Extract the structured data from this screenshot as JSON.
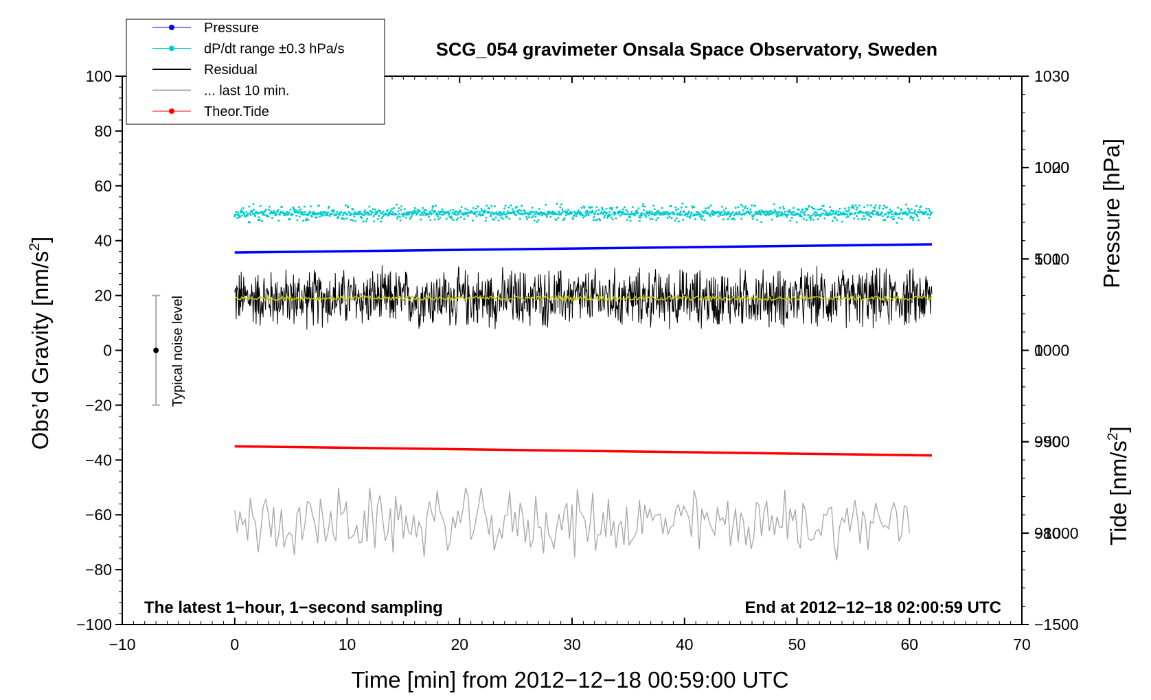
{
  "chart_data": {
    "type": "line",
    "title": "SCG_054 gravimeter Onsala Space Observatory, Sweden",
    "xlabel": "Time [min] from 2012−12−18 00:59:00 UTC",
    "ylabel_left": "Obs’d Gravity [nm/s²]",
    "ylabel_left_main": "Obs’d Gravity [nm/s",
    "ylabel_left_sup": "2",
    "ylabel_left_close": "]",
    "ylabel_right_pressure": "Pressure [hPa]",
    "ylabel_right_tide": "Tide [nm/s²]",
    "ylabel_right_tide_main": "Tide [nm/s",
    "ylabel_right_tide_sup": "2",
    "ylabel_right_tide_close": "]",
    "xlim": [
      -10,
      70
    ],
    "ylim_left": [
      -100,
      100
    ],
    "ylim_pressure": [
      970,
      1030
    ],
    "ylim_tide": [
      -1500,
      1500
    ],
    "grid": false,
    "legend_position": "top-left",
    "x_ticks": [
      "−10",
      "0",
      "10",
      "20",
      "30",
      "40",
      "50",
      "60",
      "70"
    ],
    "x_tick_values": [
      -10,
      0,
      10,
      20,
      30,
      40,
      50,
      60,
      70
    ],
    "y_ticks_left": [
      "100",
      "80",
      "60",
      "40",
      "20",
      "0",
      "−20",
      "−40",
      "−60",
      "−80",
      "−100"
    ],
    "y_tick_values_left": [
      100,
      80,
      60,
      40,
      20,
      0,
      -20,
      -40,
      -60,
      -80,
      -100
    ],
    "pressure_ticks": [
      "1030",
      "1020",
      "1010",
      "1000",
      "990",
      "980"
    ],
    "pressure_tick_values": [
      1030,
      1020,
      1010,
      1000,
      990,
      980
    ],
    "tide_ticks": [
      "1000",
      "500",
      "0",
      "−500",
      "−1000",
      "−1500"
    ],
    "tide_tick_values": [
      1000,
      500,
      0,
      -500,
      -1000,
      -1500
    ],
    "note_left": "The latest 1−hour, 1−second sampling",
    "note_right": "End at 2012−12−18 02:00:59 UTC",
    "noise_label": "Typical noise level",
    "noise_bar": {
      "x": -7,
      "center": 0,
      "low": -20,
      "high": 20
    },
    "legend": [
      {
        "label": "Pressure",
        "color": "#0000ff",
        "marker": true
      },
      {
        "label": "dP/dt range ±0.3 hPa/s",
        "color": "#00cccc",
        "marker": true
      },
      {
        "label": "Residual",
        "color": "#000000",
        "marker": false
      },
      {
        "label": "... last 10 min.",
        "color": "#a9a9a9",
        "marker": false
      },
      {
        "label": "Theor.Tide",
        "color": "#ff0000",
        "marker": true
      }
    ],
    "series": [
      {
        "name": "Pressure",
        "unit": "hPa",
        "axis": "right-pressure",
        "color": "#0000ff",
        "x": [
          0,
          62
        ],
        "y": [
          1010.7,
          1011.6
        ]
      },
      {
        "name": "dP/dt range ±0.3 hPa/s",
        "axis": "left",
        "color": "#00cccc",
        "x_range": [
          0,
          62
        ],
        "center": 50,
        "spread": 2.5
      },
      {
        "name": "Residual",
        "axis": "left",
        "color": "#000000",
        "x_range": [
          0,
          62
        ],
        "center": 19,
        "spread": 9
      },
      {
        "name": "Residual (smoothed)",
        "axis": "left",
        "color": "#cccc00",
        "x_range": [
          0,
          62
        ],
        "center": 19
      },
      {
        "name": "... last 10 min.",
        "axis": "left",
        "color": "#a9a9a9",
        "x_range": [
          0,
          60
        ],
        "center": -63,
        "spread": 10
      },
      {
        "name": "Theor.Tide",
        "unit": "nm/s²",
        "axis": "right-tide",
        "color": "#ff0000",
        "x": [
          0,
          62
        ],
        "y": [
          -525,
          -575
        ]
      }
    ]
  }
}
